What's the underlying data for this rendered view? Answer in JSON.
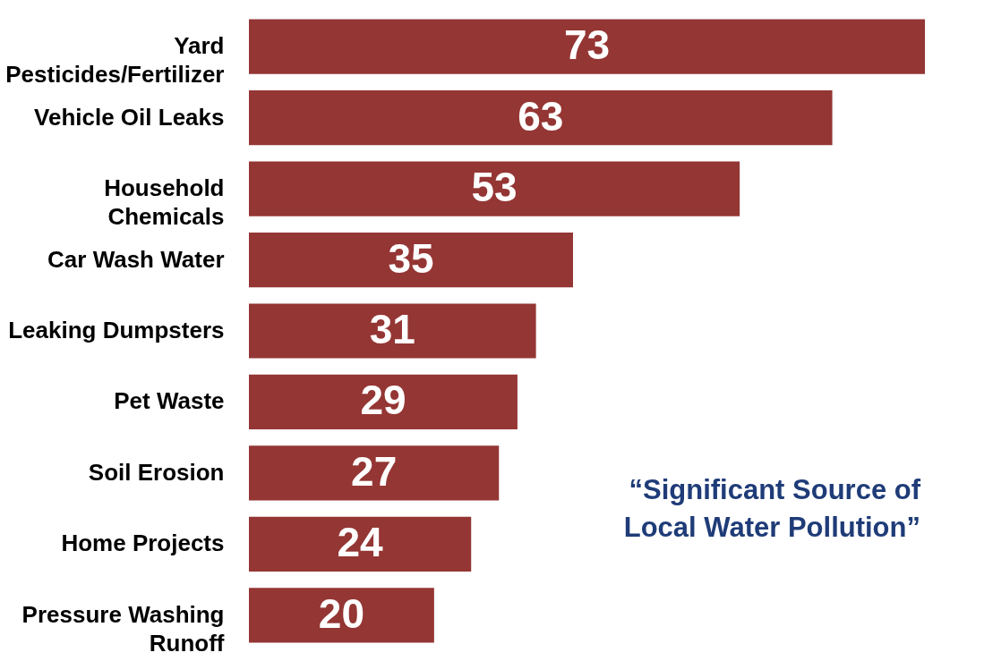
{
  "chart_data": {
    "type": "bar",
    "orientation": "horizontal",
    "categories": [
      "Yard Pesticides/Fertilizer",
      "Vehicle Oil Leaks",
      "Household Chemicals",
      "Car Wash Water",
      "Leaking Dumpsters",
      "Pet Waste",
      "Soil Erosion",
      "Home Projects",
      "Pressure Washing Runoff"
    ],
    "values": [
      73,
      63,
      53,
      35,
      31,
      29,
      27,
      24,
      20
    ],
    "color": "#943634",
    "data_labels": true,
    "tick_labels": "y",
    "annotations": [
      "“Significant Source of Local Water Pollution”"
    ]
  }
}
